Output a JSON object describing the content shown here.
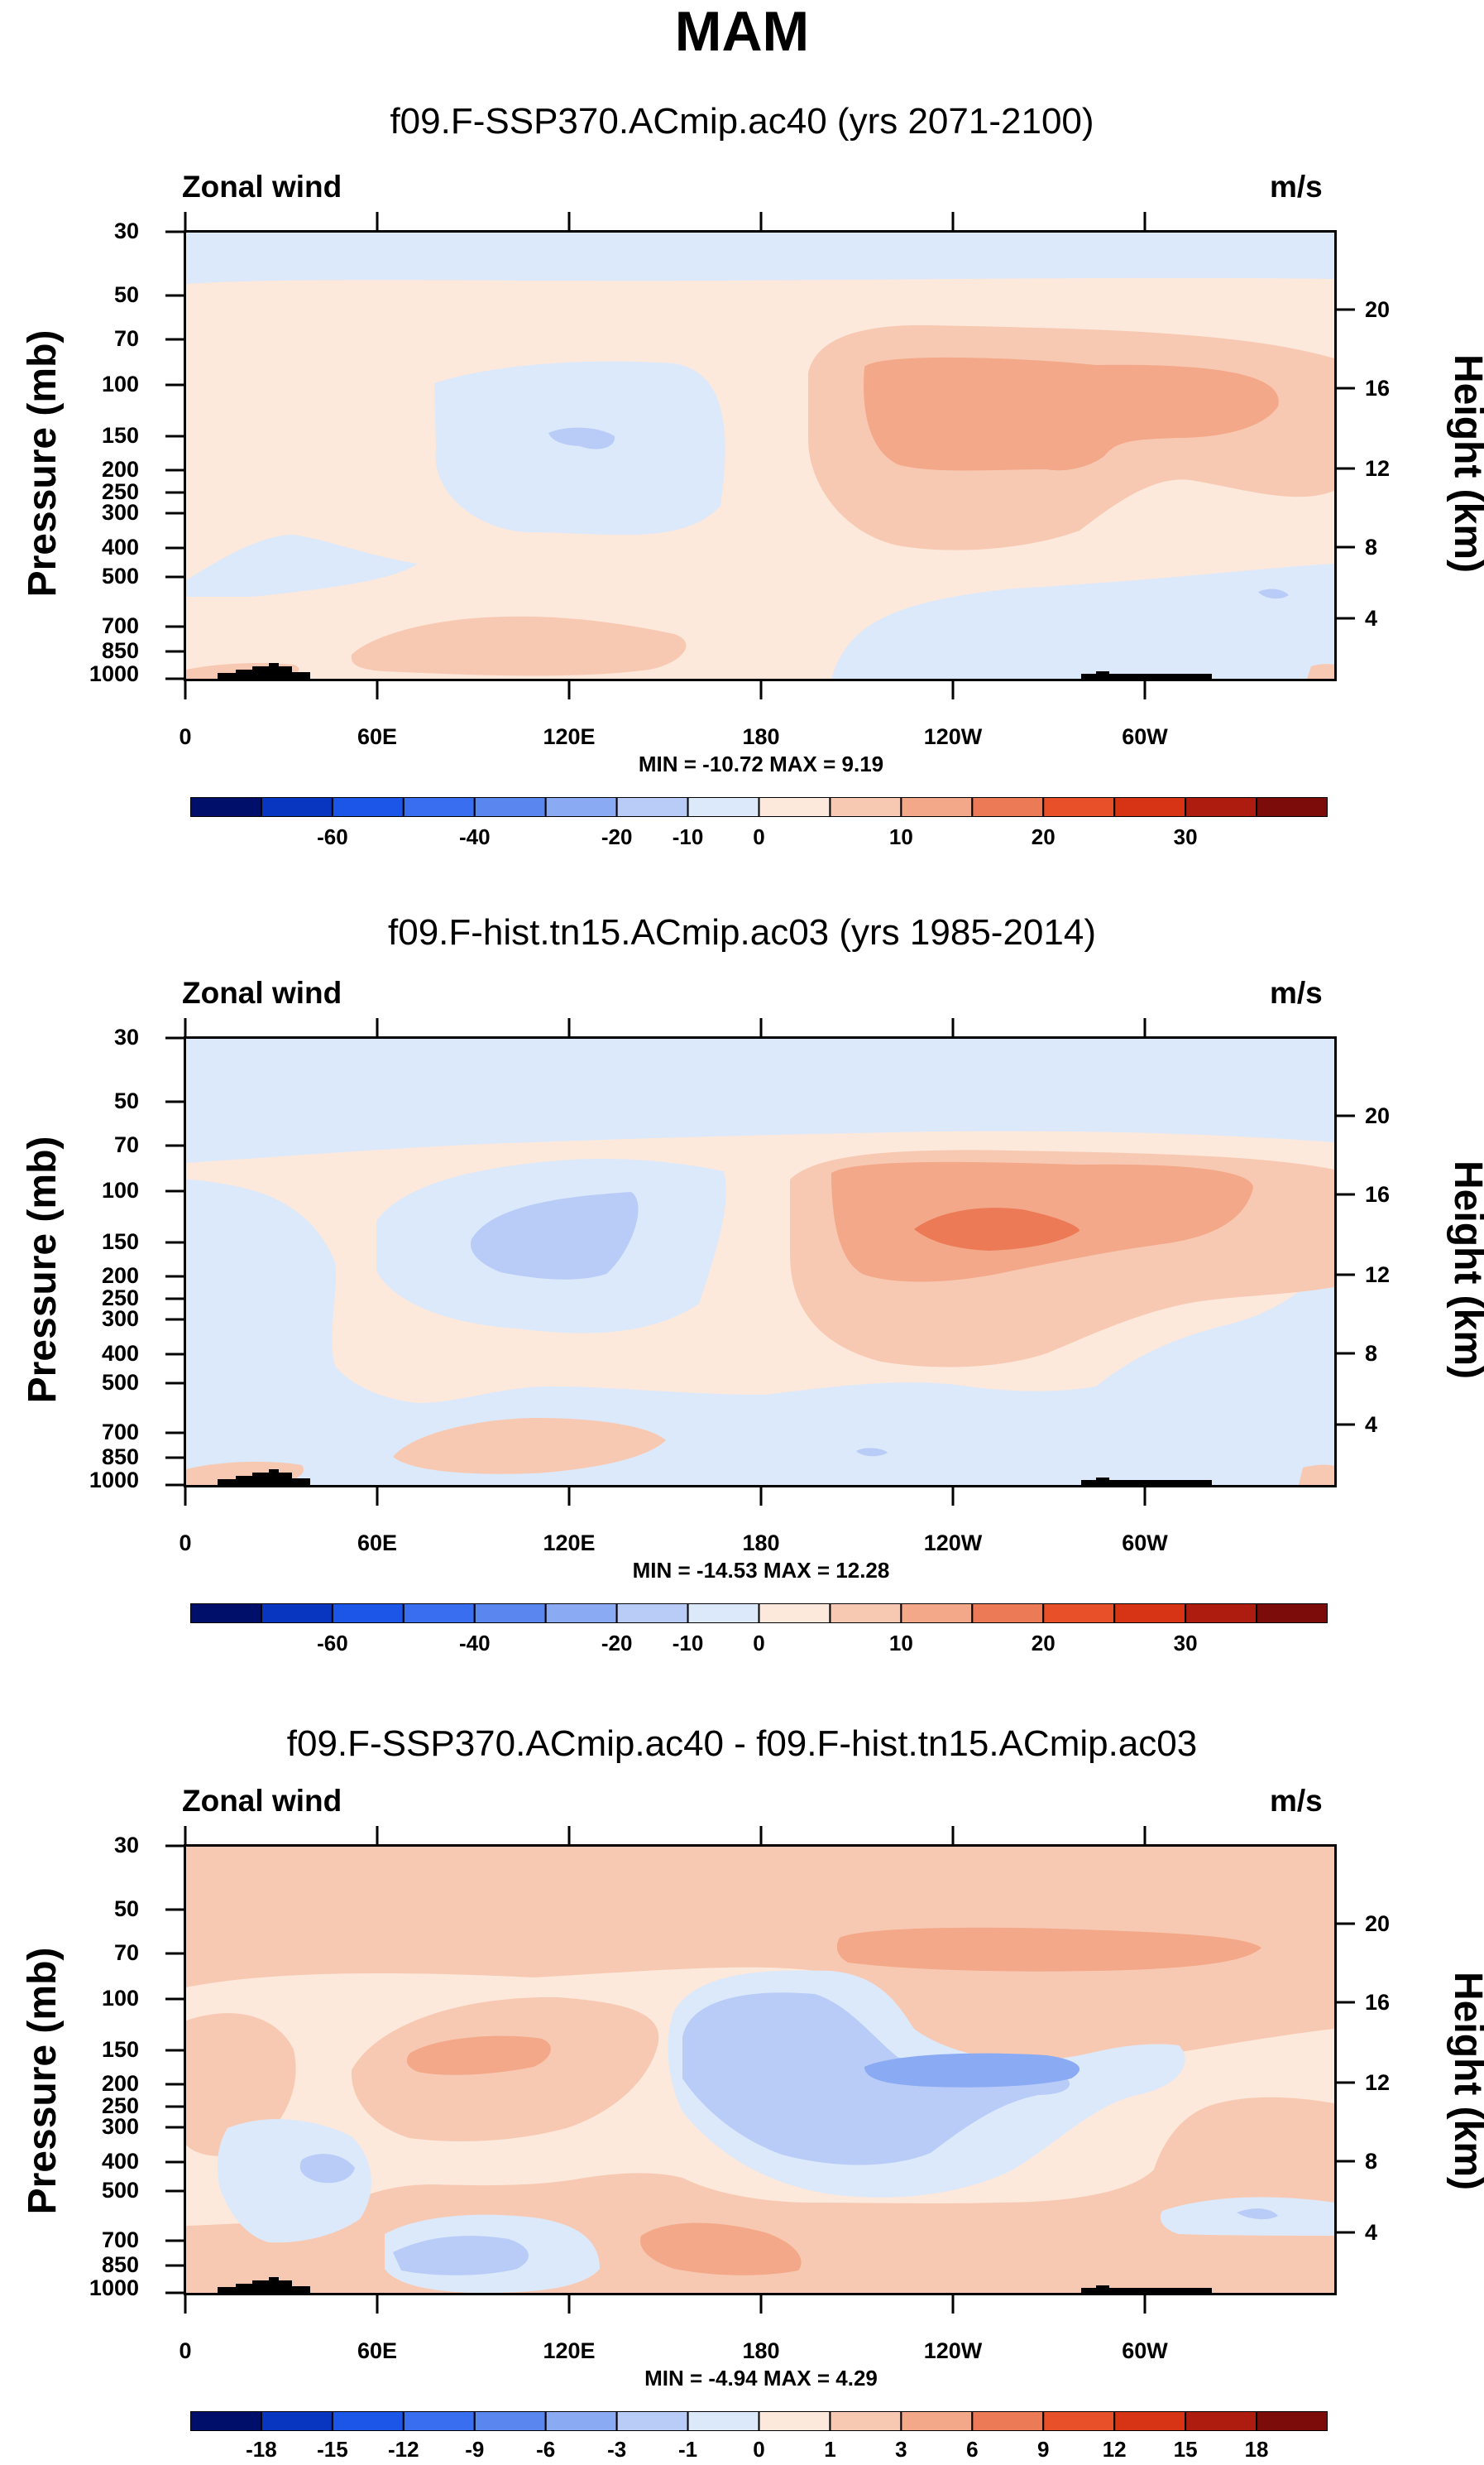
{
  "figure": {
    "title": "MAM"
  },
  "colors": {
    "blues": [
      "#000f6a",
      "#0836c0",
      "#1c56e8",
      "#3a6ef0",
      "#5a86ef",
      "#8aaaf3",
      "#b9ccf7",
      "#dce9fb"
    ],
    "neutral": "#ffffff",
    "reds": [
      "#fde8dc",
      "#f8c9b2",
      "#f3a88a",
      "#ec7a56",
      "#e8502a",
      "#d73315",
      "#ad1c0f",
      "#7c0c0a"
    ],
    "topo": "#000000"
  },
  "chart_data": [
    {
      "type": "heatmap",
      "title": "f09.F-SSP370.ACmip.ac40 (yrs 2071-2100)",
      "variable_label": "Zonal wind",
      "units_label": "m/s",
      "ylabel": "Pressure (mb)",
      "ylabel_right": "Height (km)",
      "x_ticks": [
        "0",
        "60E",
        "120E",
        "180",
        "120W",
        "60W"
      ],
      "y_ticks": [
        "30",
        "50",
        "70",
        "100",
        "150",
        "200",
        "250",
        "300",
        "400",
        "500",
        "700",
        "850",
        "1000"
      ],
      "y_right_ticks": [
        "20",
        "16",
        "12",
        "8",
        "4"
      ],
      "stats": "MIN = -10.72  MAX =   9.19",
      "min": -10.72,
      "max": 9.19,
      "colorbar_labels": [
        "-60",
        "-40",
        "-20",
        "-10",
        "0",
        "10",
        "20",
        "30"
      ]
    },
    {
      "type": "heatmap",
      "title": "f09.F-hist.tn15.ACmip.ac03 (yrs 1985-2014)",
      "variable_label": "Zonal wind",
      "units_label": "m/s",
      "ylabel": "Pressure (mb)",
      "ylabel_right": "Height (km)",
      "x_ticks": [
        "0",
        "60E",
        "120E",
        "180",
        "120W",
        "60W"
      ],
      "y_ticks": [
        "30",
        "50",
        "70",
        "100",
        "150",
        "200",
        "250",
        "300",
        "400",
        "500",
        "700",
        "850",
        "1000"
      ],
      "y_right_ticks": [
        "20",
        "16",
        "12",
        "8",
        "4"
      ],
      "stats": "MIN = -14.53  MAX =  12.28",
      "min": -14.53,
      "max": 12.28,
      "colorbar_labels": [
        "-60",
        "-40",
        "-20",
        "-10",
        "0",
        "10",
        "20",
        "30"
      ]
    },
    {
      "type": "heatmap",
      "title": "f09.F-SSP370.ACmip.ac40 - f09.F-hist.tn15.ACmip.ac03",
      "variable_label": "Zonal wind",
      "units_label": "m/s",
      "ylabel": "Pressure (mb)",
      "ylabel_right": "Height (km)",
      "x_ticks": [
        "0",
        "60E",
        "120E",
        "180",
        "120W",
        "60W"
      ],
      "y_ticks": [
        "30",
        "50",
        "70",
        "100",
        "150",
        "200",
        "250",
        "300",
        "400",
        "500",
        "700",
        "850",
        "1000"
      ],
      "y_right_ticks": [
        "20",
        "16",
        "12",
        "8",
        "4"
      ],
      "stats": "MIN = -4.94  MAX =  4.29",
      "min": -4.94,
      "max": 4.29,
      "colorbar_labels": [
        "-18",
        "-15",
        "-12",
        "-9",
        "-6",
        "-3",
        "-1",
        "0",
        "1",
        "3",
        "6",
        "9",
        "12",
        "15",
        "18"
      ]
    }
  ]
}
